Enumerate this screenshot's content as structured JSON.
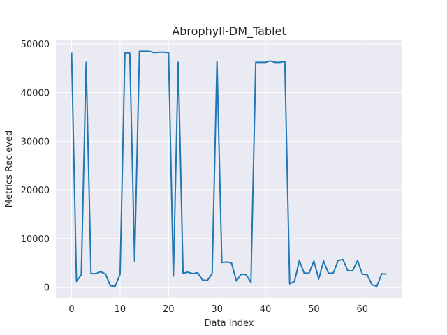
{
  "chart_data": {
    "type": "line",
    "title": "Abrophyll-DM_Tablet",
    "xlabel": "Data Index",
    "ylabel": "Metrics Recieved",
    "xlim": [
      -3.25,
      68.25
    ],
    "ylim": [
      -2200,
      50700
    ],
    "xticks": [
      0,
      10,
      20,
      30,
      40,
      50,
      60
    ],
    "yticks": [
      0,
      10000,
      20000,
      30000,
      40000,
      50000
    ],
    "grid": true,
    "line_color": "#1f77b4",
    "background_color": "#eaeaf2",
    "series": [
      {
        "values": [
          48200,
          1200,
          2600,
          46200,
          2800,
          2800,
          3200,
          2700,
          300,
          200,
          2700,
          48200,
          48100,
          5400,
          48500,
          48500,
          48500,
          48200,
          48300,
          48300,
          48200,
          2300,
          46200,
          2900,
          3100,
          2800,
          3000,
          1500,
          1400,
          2800,
          46400,
          5100,
          5200,
          5000,
          1300,
          2700,
          2600,
          1000,
          46200,
          46200,
          46200,
          46500,
          46200,
          46200,
          46400,
          700,
          1200,
          5500,
          2900,
          2900,
          5400,
          1700,
          5400,
          2900,
          2900,
          5500,
          5700,
          3400,
          3400,
          5500,
          2700,
          2600,
          500,
          200,
          2800,
          2700
        ]
      }
    ]
  }
}
